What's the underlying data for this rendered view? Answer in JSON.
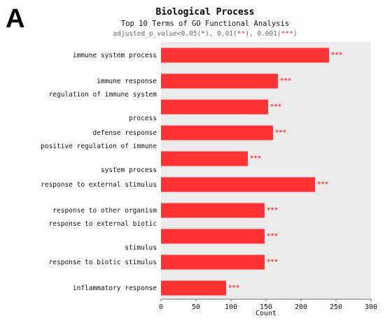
{
  "panel_label": "A",
  "chart_data": {
    "type": "bar",
    "orientation": "horizontal",
    "title": "Biological Process",
    "subtitle": "Top 10 Terms of GO Functional Analysis",
    "significance_note": {
      "prefix": "adjusted_p_value<0.05(",
      "mark1": "*",
      "mid1": "), 0.01(",
      "mark2": "**",
      "mid2": "), 0.001(",
      "mark3": "***",
      "suffix": ")"
    },
    "categories": [
      [
        "immune system process"
      ],
      [
        "immune response"
      ],
      [
        "regulation of immune system",
        "process"
      ],
      [
        "defense response"
      ],
      [
        "positive regulation of immune",
        "system process"
      ],
      [
        "response to external stimulus"
      ],
      [
        "response to other organism"
      ],
      [
        "response to external biotic",
        "stimulus"
      ],
      [
        "response to biotic stimulus"
      ],
      [
        "inflammatory response"
      ]
    ],
    "values": [
      240,
      167,
      153,
      160,
      124,
      220,
      148,
      148,
      148,
      93
    ],
    "significance": [
      "***",
      "***",
      "***",
      "***",
      "***",
      "***",
      "***",
      "***",
      "***",
      "***"
    ],
    "xlabel": "Count",
    "xlim": [
      0,
      300
    ],
    "xticks": [
      "0",
      "50",
      "100",
      "150",
      "200",
      "250",
      "300"
    ],
    "grid": false,
    "colors": {
      "bar": "#ff3333",
      "plot_background": "#ebebeb",
      "significance": "#ff2a2a"
    }
  }
}
